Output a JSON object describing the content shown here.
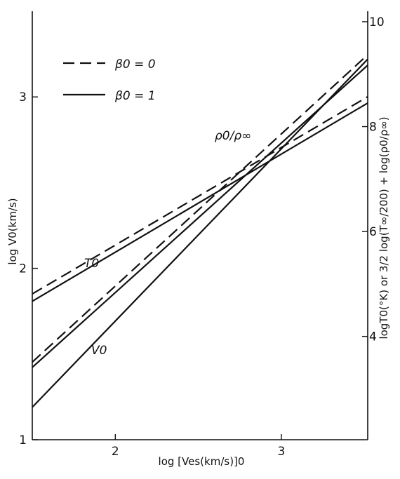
{
  "chart_data": {
    "type": "line",
    "xlabel": "log [Ves(km/s)]0",
    "ylabel": "log V0(km/s)",
    "y2label": "logT0(°K)  or  3/2 log(T∞/200) + log(ρ0/ρ∞)",
    "xlim": [
      1.5,
      3.52
    ],
    "ylim": [
      1.0,
      3.5
    ],
    "y2lim": [
      2.03,
      10.2
    ],
    "xticks": [
      "2",
      "3"
    ],
    "xtick_values": [
      2,
      3
    ],
    "yticks": [
      "1",
      "2",
      "3"
    ],
    "ytick_values": [
      1,
      2,
      3
    ],
    "y2ticks": [
      "4",
      "6",
      "8",
      "10"
    ],
    "y2tick_values": [
      4,
      6,
      8,
      10
    ],
    "grid": false,
    "legend": {
      "position": "top-left",
      "entries": [
        {
          "label": "β0 = 0",
          "style": "dashed"
        },
        {
          "label": "β0 = 1",
          "style": "solid"
        }
      ]
    },
    "annotations": [
      "ρ0/ρ∞",
      "T0",
      "V0"
    ],
    "series": [
      {
        "curve": "V0",
        "style": "solid",
        "axis": "left",
        "x": [
          1.5,
          3.52
        ],
        "y": [
          1.19,
          3.22
        ]
      },
      {
        "curve": "ρ0/ρ∞",
        "style": "dashed",
        "axis": "right",
        "x": [
          1.5,
          3.52
        ],
        "y": [
          3.51,
          9.37
        ]
      },
      {
        "curve": "ρ0/ρ∞",
        "style": "solid",
        "axis": "right",
        "x": [
          1.5,
          3.52
        ],
        "y": [
          3.41,
          9.17
        ]
      },
      {
        "curve": "T0",
        "style": "dashed",
        "axis": "right",
        "x": [
          1.5,
          3.52
        ],
        "y": [
          4.81,
          8.57
        ]
      },
      {
        "curve": "T0",
        "style": "solid",
        "axis": "right",
        "x": [
          1.5,
          3.52
        ],
        "y": [
          4.67,
          8.45
        ]
      }
    ]
  }
}
